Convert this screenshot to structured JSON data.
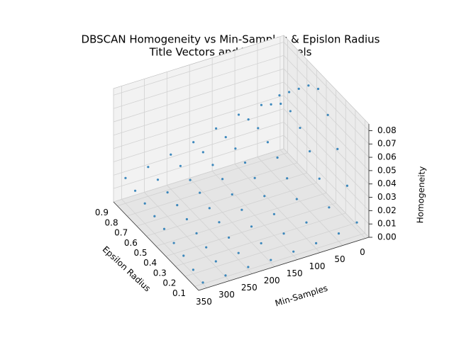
{
  "chart_data": {
    "type": "scatter3d",
    "title": "DBSCAN Homogeneity vs Min-Samples & Epislon Radius",
    "subtitle": "Title Vectors and Topics Labels",
    "xlabel": "Epsilon Radius",
    "ylabel": "Min-Samples",
    "zlabel": "Homogeneity",
    "color": "#1f77b4",
    "xlim": [
      0.06,
      0.94
    ],
    "ylim": [
      -8,
      368
    ],
    "zlim": [
      0,
      0.085
    ],
    "xticks": [
      0.1,
      0.2,
      0.3,
      0.4,
      0.5,
      0.6,
      0.7,
      0.8,
      0.9
    ],
    "yticks": [
      0,
      50,
      100,
      150,
      200,
      250,
      300,
      350
    ],
    "zticks": [
      {
        "value": 0,
        "label": "0.00"
      },
      0.01,
      0.02,
      0.03,
      0.04,
      0.05,
      0.06,
      0.07,
      0.08
    ],
    "grid": true,
    "x": [
      0.1,
      0.1,
      0.1,
      0.1,
      0.1,
      0.1,
      0.1,
      0.1,
      0.2,
      0.2,
      0.2,
      0.2,
      0.2,
      0.2,
      0.2,
      0.2,
      0.3,
      0.3,
      0.3,
      0.3,
      0.3,
      0.3,
      0.3,
      0.3,
      0.4,
      0.4,
      0.4,
      0.4,
      0.4,
      0.4,
      0.4,
      0.4,
      0.5,
      0.5,
      0.5,
      0.5,
      0.5,
      0.5,
      0.5,
      0.5,
      0.6,
      0.6,
      0.6,
      0.6,
      0.6,
      0.6,
      0.6,
      0.6,
      0.7,
      0.7,
      0.7,
      0.7,
      0.7,
      0.7,
      0.7,
      0.7,
      0.8,
      0.8,
      0.8,
      0.8,
      0.8,
      0.8,
      0.8,
      0.8,
      0.9,
      0.9,
      0.9,
      0.9,
      0.9,
      0.9,
      0.9,
      0.9
    ],
    "y": [
      10,
      50,
      100,
      150,
      200,
      250,
      300,
      350,
      10,
      50,
      100,
      150,
      200,
      250,
      300,
      350,
      10,
      50,
      100,
      150,
      200,
      250,
      300,
      350,
      10,
      50,
      100,
      150,
      200,
      250,
      300,
      350,
      10,
      50,
      100,
      150,
      200,
      250,
      300,
      350,
      10,
      50,
      100,
      150,
      200,
      250,
      300,
      350,
      10,
      50,
      100,
      150,
      200,
      250,
      300,
      350,
      10,
      50,
      100,
      150,
      200,
      250,
      300,
      350,
      10,
      50,
      100,
      150,
      200,
      250,
      300,
      350
    ],
    "z": [
      0.01,
      0.006,
      0.004,
      0.003,
      0.002,
      0.002,
      0.001,
      0.001,
      0.03,
      0.018,
      0.012,
      0.009,
      0.007,
      0.005,
      0.004,
      0.003,
      0.05,
      0.032,
      0.022,
      0.016,
      0.012,
      0.009,
      0.007,
      0.006,
      0.068,
      0.045,
      0.03,
      0.022,
      0.017,
      0.013,
      0.01,
      0.008,
      0.08,
      0.055,
      0.038,
      0.028,
      0.021,
      0.016,
      0.013,
      0.011,
      0.075,
      0.06,
      0.042,
      0.032,
      0.025,
      0.02,
      0.016,
      0.013,
      0.065,
      0.058,
      0.045,
      0.035,
      0.028,
      0.022,
      0.018,
      0.015,
      0.055,
      0.05,
      0.044,
      0.036,
      0.03,
      0.025,
      0.02,
      0.017,
      0.045,
      0.042,
      0.04,
      0.035,
      0.03,
      0.026,
      0.022,
      0.019
    ]
  }
}
